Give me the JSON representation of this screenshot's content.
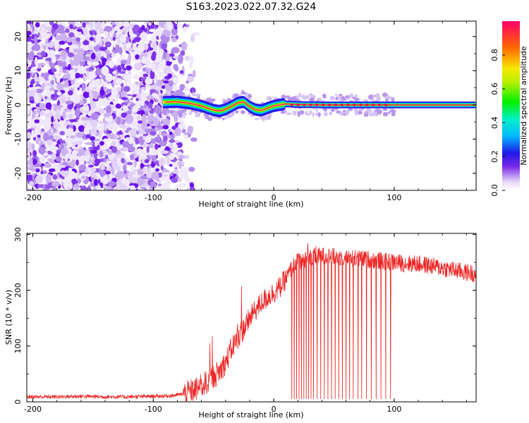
{
  "figure": {
    "title": "S163.2023.022.07.32.G24"
  },
  "chart_data": [
    {
      "type": "heatmap",
      "title": "",
      "xlabel": "Height of straight line (km)",
      "ylabel": "Frequency (Hz)",
      "xlim": [
        -205,
        168
      ],
      "ylim": [
        -25,
        24.5
      ],
      "x_ticks": [
        -200,
        -100,
        0,
        100
      ],
      "y_ticks": [
        -20,
        -10,
        0,
        10,
        20
      ],
      "noise_region_x": [
        -205,
        -75
      ],
      "ridge": {
        "description_values": "dominant frequency vs height",
        "x": [
          -90,
          -80,
          -70,
          -60,
          -50,
          -45,
          -40,
          -35,
          -30,
          -25,
          -20,
          -15,
          -10,
          -5,
          0,
          10,
          20,
          40,
          60,
          80,
          100,
          130,
          168
        ],
        "y": [
          0.8,
          0.9,
          0.5,
          -0.3,
          -1.5,
          -1.8,
          -1.3,
          -0.4,
          0.6,
          0.9,
          -0.5,
          -1.4,
          -1.6,
          -0.9,
          -0.3,
          0.3,
          0.1,
          0.0,
          0.0,
          0.0,
          0.0,
          0.0,
          0.0
        ]
      },
      "colorbar": {
        "label": "Normalized spectral amplitude",
        "range": [
          0,
          1
        ],
        "ticks": [
          0.0,
          0.2,
          0.4,
          0.6,
          0.8
        ],
        "tick_labels": [
          "0.0",
          "0.2",
          "0.4",
          "0.6",
          "0.8"
        ]
      }
    },
    {
      "type": "line",
      "title": "",
      "xlabel": "Height of straight line (km)",
      "ylabel": "SNR (10 * v/v)",
      "xlim": [
        -205,
        168
      ],
      "ylim": [
        0,
        302
      ],
      "x_ticks": [
        -200,
        -100,
        0,
        100
      ],
      "y_ticks": [
        0,
        100,
        200,
        300
      ],
      "color": "#ee2222",
      "series": [
        {
          "x": [
            -205,
            -180,
            -160,
            -140,
            -120,
            -100,
            -85,
            -75,
            -65,
            -55,
            -45,
            -40,
            -35,
            -30,
            -25,
            -20,
            -15,
            -10,
            -5,
            0,
            5,
            10,
            15,
            20,
            30,
            40,
            50,
            60,
            70,
            80,
            90,
            100,
            110,
            120,
            130,
            140,
            150,
            160,
            168
          ],
          "values": [
            9,
            9,
            10,
            9,
            9,
            10,
            11,
            14,
            22,
            36,
            55,
            70,
            95,
            115,
            130,
            150,
            165,
            178,
            188,
            196,
            205,
            220,
            240,
            252,
            258,
            262,
            260,
            258,
            256,
            255,
            252,
            250,
            248,
            247,
            244,
            240,
            236,
            232,
            230
          ]
        }
      ],
      "dropouts_x": [
        15,
        17,
        19,
        21,
        23,
        25,
        27,
        29,
        31,
        33,
        36,
        39,
        42,
        45,
        48,
        51,
        54,
        57,
        60,
        63,
        66,
        70,
        73,
        77,
        81,
        85,
        89,
        93,
        97
      ],
      "dropout_value": 5
    }
  ]
}
